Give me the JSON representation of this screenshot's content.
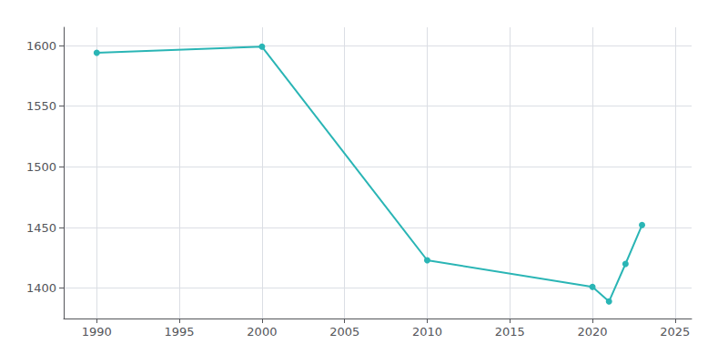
{
  "chart_data": {
    "type": "line",
    "x": [
      1990,
      2000,
      2010,
      2020,
      2021,
      2022,
      2023
    ],
    "values": [
      1594,
      1599,
      1423,
      1401,
      1389,
      1420,
      1452
    ],
    "color": "#2ab5b5",
    "marker": "circle",
    "xlim": [
      1988,
      2026
    ],
    "ylim": [
      1375,
      1615
    ],
    "xticks": [
      1990,
      1995,
      2000,
      2005,
      2010,
      2015,
      2020,
      2025
    ],
    "yticks": [
      1400,
      1450,
      1500,
      1550,
      1600
    ],
    "grid": true
  }
}
